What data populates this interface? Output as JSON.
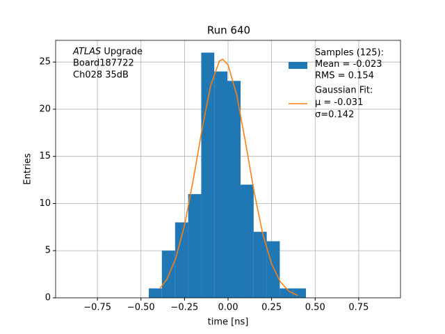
{
  "chart_data": {
    "type": "histogram",
    "title": "Run 640",
    "xlabel": "time [ns]",
    "ylabel": "Entries",
    "bins": [
      -0.455,
      -0.38,
      -0.304,
      -0.229,
      -0.154,
      -0.079,
      -0.004,
      0.072,
      0.147,
      0.222,
      0.297,
      0.372,
      0.447
    ],
    "counts": [
      1,
      5,
      8,
      11,
      26,
      24,
      23,
      12,
      7,
      6,
      1,
      1
    ],
    "color": "#1f77b4",
    "fit": {
      "x": [
        -0.39,
        -0.35,
        -0.3,
        -0.25,
        -0.2,
        -0.15,
        -0.1,
        -0.05,
        -0.031,
        0,
        0.05,
        0.1,
        0.15,
        0.2,
        0.25,
        0.3,
        0.35,
        0.4
      ],
      "values": [
        1.03,
        2.0,
        4.2,
        7.7,
        12.5,
        17.8,
        22.5,
        25.1,
        25.3,
        24.7,
        21.5,
        16.5,
        11.2,
        6.7,
        3.6,
        1.7,
        0.69,
        0.25
      ],
      "color": "#ff7f0e"
    },
    "legend": {
      "corner": "upper right",
      "hist_lines": [
        "Samples (125):",
        " Mean = -0.023",
        " RMS = 0.154"
      ],
      "fit_lines": [
        "Gaussian Fit:",
        " μ = -0.031",
        " σ=0.142"
      ]
    },
    "annotation_emphasis": "ATLAS",
    "annotation_lines": [
      " Upgrade",
      " Board187722",
      " Ch028 35dB"
    ],
    "xlim": [
      -0.99,
      0.99
    ],
    "ylim": [
      0,
      27.3
    ],
    "xticks": [
      {
        "value": -0.75,
        "label": "−0.75"
      },
      {
        "value": -0.5,
        "label": "−0.50"
      },
      {
        "value": -0.25,
        "label": "−0.25"
      },
      {
        "value": 0,
        "label": "0.00"
      },
      {
        "value": 0.25,
        "label": "0.25"
      },
      {
        "value": 0.5,
        "label": "0.50"
      },
      {
        "value": 0.75,
        "label": "0.75"
      }
    ],
    "yticks": [
      0,
      5,
      10,
      15,
      20,
      25
    ],
    "grid": true
  }
}
